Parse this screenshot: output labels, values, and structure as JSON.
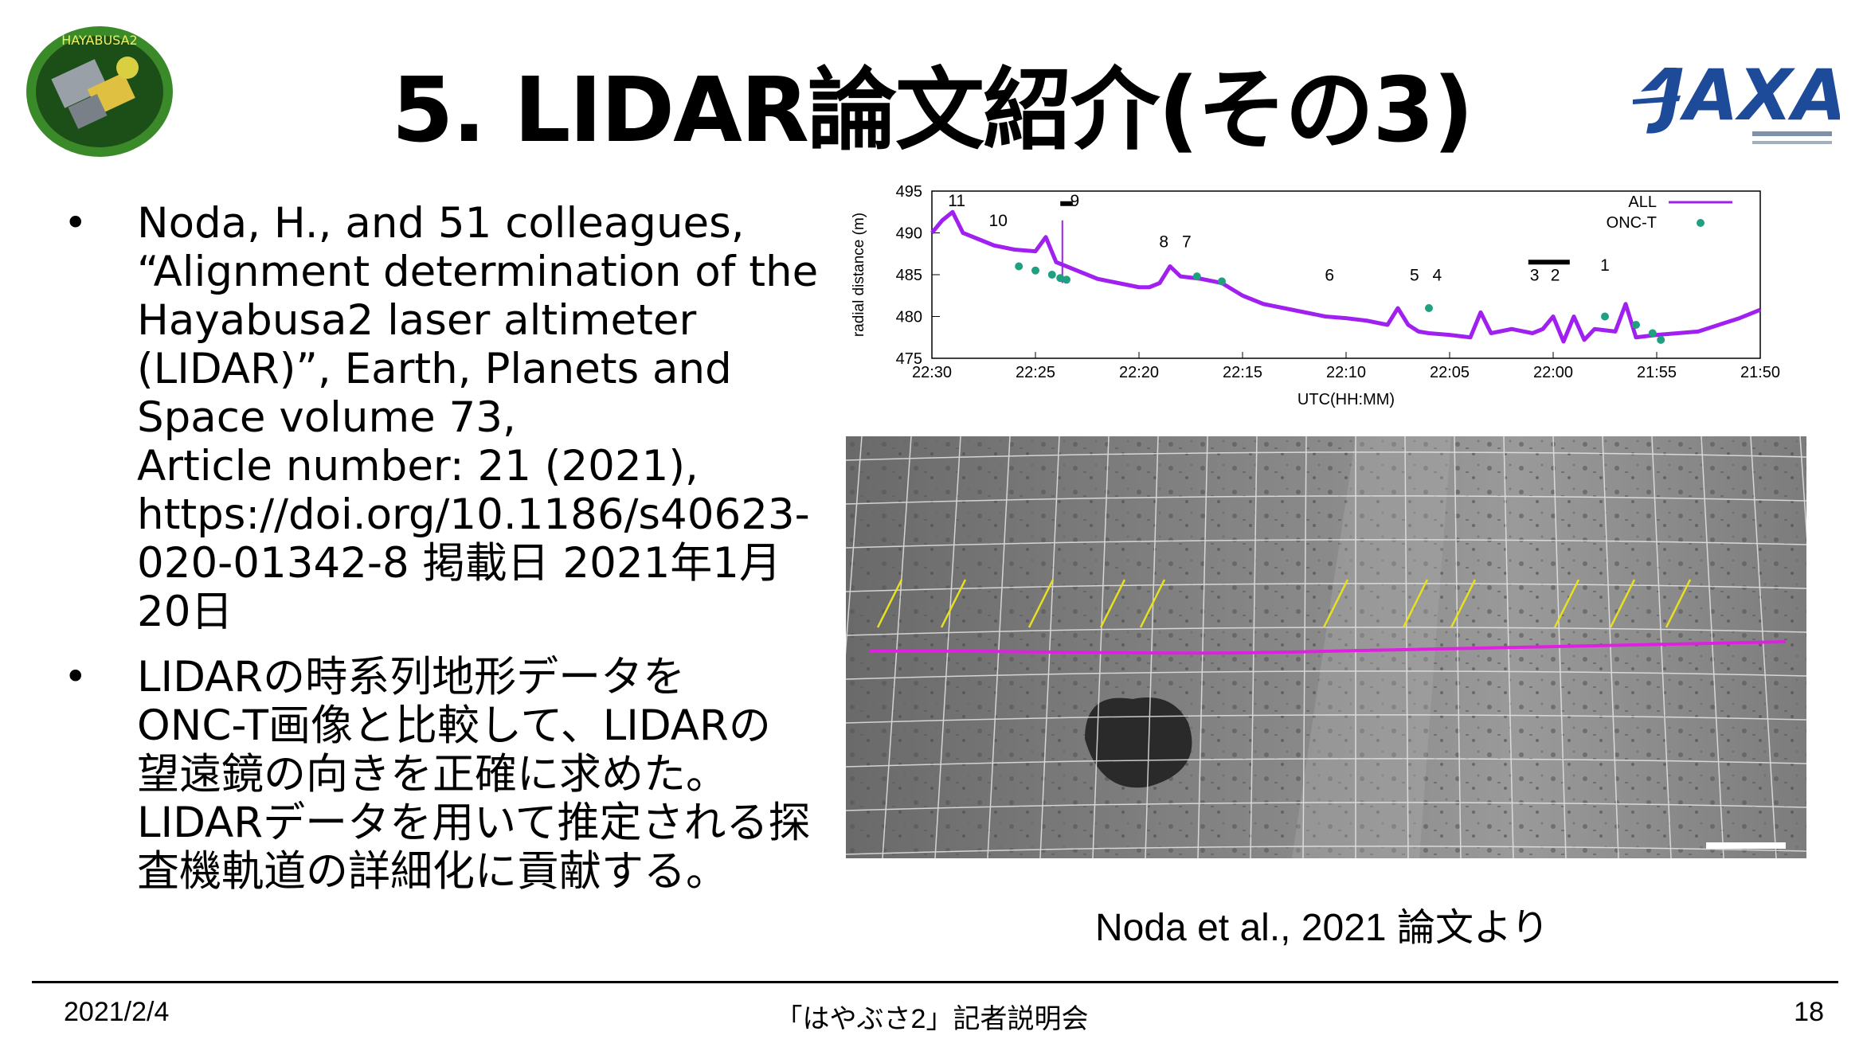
{
  "slide": {
    "title": "5. LIDAR論文紹介(その3)",
    "logo_left_text": "HAYABUSA2",
    "logo_right_text": "JAXA",
    "bullets": [
      {
        "lines": [
          "Noda, H., and 51 colleagues,",
          "“Alignment determination of the",
          "Hayabusa2 laser altimeter",
          "(LIDAR)”, Earth, Planets and",
          "Space volume 73,",
          "Article number: 21 (2021),",
          "https://doi.org/10.1186/s40623-",
          "020-01342-8 掲載日 2021年1月",
          "20日"
        ]
      },
      {
        "lines": [
          "LIDARの時系列地形データを",
          "ONC-T画像と比較して、LIDARの",
          "望遠鏡の向きを正確に求めた。",
          "LIDARデータを用いて推定される探",
          "査機軌道の詳細化に貢献する。"
        ]
      }
    ],
    "bullet_symbol": "•",
    "caption": "Noda et al., 2021 論文より",
    "footer": {
      "date": "2021/2/4",
      "center": "「はやぶさ2」記者説明会",
      "page": "18"
    }
  },
  "chart_data": {
    "type": "line",
    "xlabel": "UTC(HH:MM)",
    "ylabel": "radial distance (m)",
    "ylim": [
      475,
      495
    ],
    "yticks": [
      475,
      480,
      485,
      490,
      495
    ],
    "xtick_labels": [
      "22:30",
      "22:25",
      "22:20",
      "22:15",
      "22:10",
      "22:05",
      "22:00",
      "21:55",
      "21:50"
    ],
    "xlim_minutes_from_2130": [
      0,
      40
    ],
    "legend": [
      {
        "name": "ALL",
        "color": "#a020f0"
      },
      {
        "name": "ONC-T",
        "color": "#20a080"
      }
    ],
    "legend_position": "top-right",
    "series_all": {
      "x": [
        0,
        0.5,
        1,
        1.5,
        2,
        3,
        4,
        5,
        5.5,
        6,
        7,
        8,
        9,
        10,
        10.5,
        11,
        11.5,
        12,
        13,
        14,
        15,
        16,
        17,
        18,
        19,
        20,
        21,
        22,
        22.5,
        23,
        23.5,
        24,
        25,
        26,
        26.5,
        27,
        28,
        29,
        29.5,
        30,
        30.5,
        31,
        31.5,
        32,
        33,
        33.5,
        34,
        35,
        36,
        37,
        38,
        39,
        40
      ],
      "y": [
        490,
        491.5,
        492.5,
        490,
        489.5,
        488.5,
        488,
        487.8,
        489.5,
        486.5,
        485.5,
        484.5,
        484,
        483.5,
        483.5,
        484,
        486,
        484.8,
        484.5,
        484,
        482.5,
        481.5,
        481,
        480.5,
        480,
        479.8,
        479.5,
        479,
        481,
        479,
        478.2,
        478,
        477.8,
        477.5,
        480.5,
        478,
        478.5,
        478,
        478.5,
        480,
        477,
        480,
        477.2,
        478.5,
        478.2,
        481.5,
        477.5,
        477.8,
        478,
        478.2,
        479,
        479.8,
        480.8
      ]
    },
    "series_onct": {
      "x": [
        4.2,
        5,
        5.8,
        6.2,
        6.5,
        12.8,
        14,
        24,
        32.5,
        34,
        34.8,
        35.2
      ],
      "y": [
        486,
        485.5,
        485,
        484.6,
        484.4,
        484.8,
        484.2,
        481,
        480,
        479,
        478,
        477.2
      ]
    },
    "annotations": [
      {
        "label": "11",
        "x": 1.2,
        "y": 493.2
      },
      {
        "label": "10",
        "x": 3.2,
        "y": 490.8
      },
      {
        "label": "9",
        "x": 6.9,
        "y": 493.2
      },
      {
        "label": "8",
        "x": 11.2,
        "y": 488.3
      },
      {
        "label": "7",
        "x": 12.3,
        "y": 488.3
      },
      {
        "label": "6",
        "x": 19.2,
        "y": 484.3
      },
      {
        "label": "5",
        "x": 23.3,
        "y": 484.3
      },
      {
        "label": "4",
        "x": 24.4,
        "y": 484.3
      },
      {
        "label": "3",
        "x": 29.1,
        "y": 484.3
      },
      {
        "label": "2",
        "x": 30.1,
        "y": 484.3
      },
      {
        "label": "1",
        "x": 32.5,
        "y": 485.5
      }
    ],
    "bars": [
      {
        "x0": 6.2,
        "x1": 6.8,
        "y": 493.5
      },
      {
        "x0": 28.8,
        "x1": 30.8,
        "y": 486.5
      }
    ],
    "spike": {
      "x": 6.3,
      "y0": 484,
      "y1": 491.5
    }
  }
}
